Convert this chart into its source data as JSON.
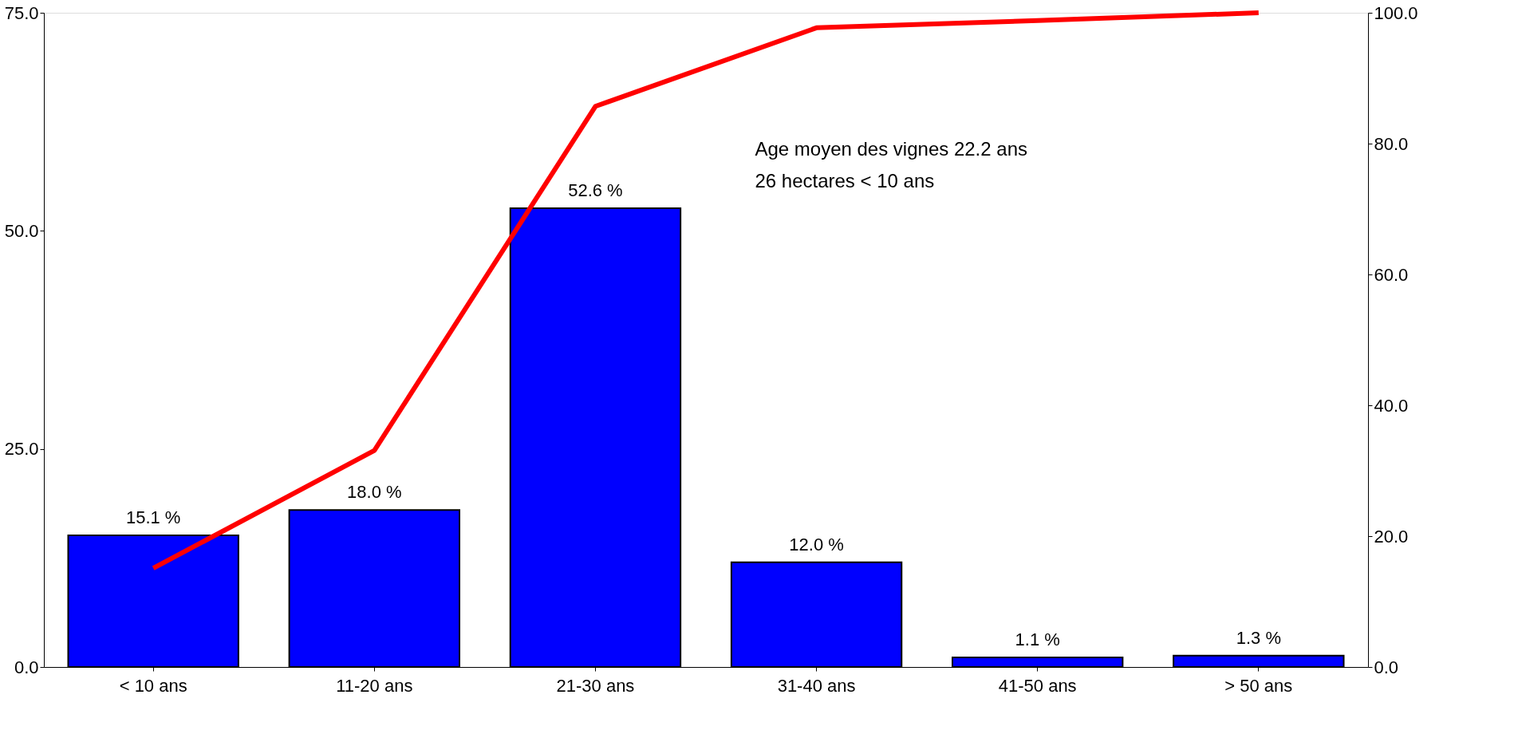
{
  "chart_data": {
    "type": "bar",
    "categories": [
      "< 10 ans",
      "11-20 ans",
      "21-30 ans",
      "31-40 ans",
      "41-50 ans",
      "> 50 ans"
    ],
    "series": [
      {
        "color": "#0000ff",
        "values": [
          15.1,
          18.0,
          52.6,
          12.0,
          1.1,
          1.3
        ],
        "value_labels": [
          "15.1 %",
          "18.0 %",
          "52.6 %",
          "12.0 %",
          "1.1 %",
          "1.3 %"
        ]
      },
      {
        "type": "line",
        "axis": "y2",
        "color": "#ff0000",
        "values": [
          15.1,
          33.1,
          85.7,
          97.7,
          98.8,
          100.0
        ]
      }
    ],
    "ylim": [
      0,
      75
    ],
    "yticks": [
      {
        "value": 0,
        "label": "0.0"
      },
      {
        "value": 25,
        "label": "25.0"
      },
      {
        "value": 50,
        "label": "50.0"
      },
      {
        "value": 75,
        "label": "75.0"
      }
    ],
    "y2lim": [
      0,
      100
    ],
    "y2ticks": [
      {
        "value": 0,
        "label": "0.0"
      },
      {
        "value": 20,
        "label": "20.0"
      },
      {
        "value": 40,
        "label": "40.0"
      },
      {
        "value": 60,
        "label": "60.0"
      },
      {
        "value": 80,
        "label": "80.0"
      },
      {
        "value": 100,
        "label": "100.0"
      }
    ],
    "annotations": [
      "Age moyen des vignes 22.2 ans",
      "26 hectares < 10 ans"
    ],
    "grid": false,
    "line_style": "solid",
    "marker": "none"
  }
}
